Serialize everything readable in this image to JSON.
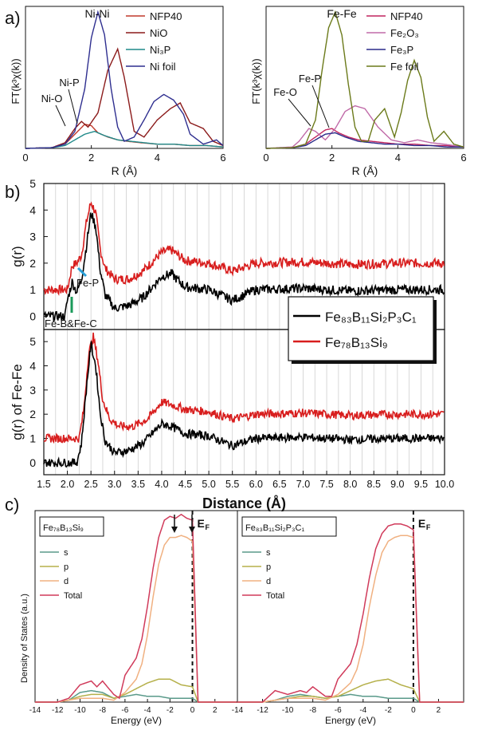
{
  "panel_labels": {
    "a": "a)",
    "b": "b)",
    "c": "c)"
  },
  "chart_data": [
    {
      "id": "a_left",
      "type": "line",
      "xlabel": "R (Å)",
      "ylabel": "FT(k³χ(k))",
      "xlim": [
        0,
        6
      ],
      "ylim": [
        0,
        1.0
      ],
      "xticks": [
        "0",
        "2",
        "4",
        "6"
      ],
      "grid": false,
      "legend_placement": "top-right",
      "annotations": [
        "Ni-Ni",
        "Ni-P",
        "Ni-O"
      ],
      "series": [
        {
          "name": "NFP40",
          "color": "#c0392b",
          "x": [
            0,
            0.8,
            1.2,
            1.5,
            1.8,
            2.0,
            2.2,
            2.5,
            2.8,
            3.1,
            3.5,
            4.0,
            4.5,
            5.0,
            5.5,
            6.0
          ],
          "y": [
            0,
            0.005,
            0.03,
            0.1,
            0.17,
            0.16,
            0.11,
            0.08,
            0.06,
            0.05,
            0.04,
            0.03,
            0.03,
            0.02,
            0.02,
            0.01
          ]
        },
        {
          "name": "NiO",
          "color": "#8b1a1a",
          "x": [
            0,
            0.8,
            1.2,
            1.5,
            1.7,
            1.9,
            2.2,
            2.5,
            2.8,
            3.0,
            3.3,
            3.6,
            4.0,
            4.4,
            4.7,
            5.0,
            5.4,
            5.7,
            6.0
          ],
          "y": [
            0,
            0.005,
            0.04,
            0.14,
            0.19,
            0.15,
            0.25,
            0.55,
            0.7,
            0.5,
            0.12,
            0.08,
            0.2,
            0.28,
            0.32,
            0.18,
            0.14,
            0.05,
            0.02
          ]
        },
        {
          "name": "Ni₃P",
          "color": "#1f8a8a",
          "x": [
            0,
            0.8,
            1.2,
            1.5,
            1.8,
            2.1,
            2.4,
            2.8,
            3.2,
            3.6,
            4.0,
            4.5,
            5.0,
            5.5,
            6.0
          ],
          "y": [
            0,
            0.005,
            0.02,
            0.06,
            0.1,
            0.12,
            0.09,
            0.06,
            0.05,
            0.04,
            0.03,
            0.03,
            0.02,
            0.02,
            0.01
          ]
        },
        {
          "name": "Ni foil",
          "color": "#2e2e8f",
          "x": [
            0,
            0.8,
            1.2,
            1.5,
            1.8,
            2.0,
            2.2,
            2.4,
            2.6,
            2.8,
            3.0,
            3.3,
            3.6,
            3.9,
            4.2,
            4.5,
            4.8,
            5.0,
            5.4,
            5.8,
            6.0
          ],
          "y": [
            0,
            0.005,
            0.03,
            0.12,
            0.42,
            0.78,
            0.96,
            0.8,
            0.42,
            0.15,
            0.05,
            0.08,
            0.2,
            0.33,
            0.38,
            0.34,
            0.24,
            0.1,
            0.03,
            0.06,
            0.02
          ]
        }
      ]
    },
    {
      "id": "a_right",
      "type": "line",
      "xlabel": "R (Å)",
      "ylabel": "FT(k³χ(k))",
      "xlim": [
        0,
        6
      ],
      "ylim": [
        0,
        1.0
      ],
      "xticks": [
        "0",
        "2",
        "4",
        "6"
      ],
      "grid": false,
      "legend_placement": "top-right",
      "annotations": [
        "Fe-Fe",
        "Fe-P",
        "Fe-O"
      ],
      "series": [
        {
          "name": "NFP40",
          "color": "#c0245e",
          "x": [
            0,
            0.8,
            1.2,
            1.5,
            1.8,
            2.0,
            2.2,
            2.5,
            2.8,
            3.2,
            3.6,
            4.0,
            4.5,
            5.0,
            5.5,
            6.0
          ],
          "y": [
            0,
            0.005,
            0.03,
            0.08,
            0.13,
            0.14,
            0.11,
            0.08,
            0.06,
            0.05,
            0.04,
            0.03,
            0.03,
            0.02,
            0.02,
            0.01
          ]
        },
        {
          "name": "Fe₂O₃",
          "color": "#c06aa8",
          "x": [
            0,
            0.8,
            1.0,
            1.3,
            1.5,
            1.8,
            2.1,
            2.4,
            2.7,
            3.0,
            3.4,
            3.8,
            4.2,
            4.6,
            5.0,
            5.4,
            6.0
          ],
          "y": [
            0,
            0.01,
            0.05,
            0.14,
            0.12,
            0.06,
            0.14,
            0.26,
            0.3,
            0.28,
            0.15,
            0.06,
            0.04,
            0.06,
            0.04,
            0.03,
            0.01
          ]
        },
        {
          "name": "Fe₃P",
          "color": "#2a2a8a",
          "x": [
            0,
            0.8,
            1.2,
            1.5,
            1.8,
            2.1,
            2.4,
            2.8,
            3.2,
            3.6,
            4.0,
            4.5,
            5.0,
            5.5,
            6.0
          ],
          "y": [
            0,
            0.005,
            0.02,
            0.06,
            0.1,
            0.11,
            0.08,
            0.05,
            0.04,
            0.03,
            0.03,
            0.02,
            0.02,
            0.01,
            0.01
          ]
        },
        {
          "name": "Fe foil",
          "color": "#6b7a1a",
          "x": [
            0,
            0.8,
            1.2,
            1.5,
            1.7,
            1.9,
            2.1,
            2.3,
            2.5,
            2.7,
            2.9,
            3.1,
            3.3,
            3.6,
            3.9,
            4.1,
            4.3,
            4.5,
            4.7,
            4.9,
            5.1,
            5.4,
            5.7,
            6.0
          ],
          "y": [
            0,
            0.005,
            0.03,
            0.2,
            0.55,
            0.85,
            0.96,
            0.8,
            0.45,
            0.15,
            0.05,
            0.05,
            0.2,
            0.28,
            0.08,
            0.25,
            0.48,
            0.62,
            0.5,
            0.22,
            0.05,
            0.12,
            0.03,
            0.01
          ]
        }
      ]
    },
    {
      "id": "b_top",
      "type": "line",
      "xlabel": "",
      "ylabel": "g(r)",
      "xlim": [
        1.5,
        10.0
      ],
      "ylim": [
        -0.5,
        5
      ],
      "yticks": [
        "0",
        "1",
        "2",
        "3",
        "4",
        "5"
      ],
      "grid": "vertical",
      "legend_placement": "bottom-right",
      "annotations": [
        "Fe-P",
        "Fe-B&Fe-C"
      ],
      "series": [
        {
          "name": "Fe₈₃B₁₁Si₂P₃C₁",
          "color": "#000000",
          "x": [
            1.5,
            1.95,
            2.0,
            2.1,
            2.2,
            2.3,
            2.4,
            2.5,
            2.6,
            2.7,
            2.8,
            3.0,
            3.3,
            3.6,
            4.0,
            4.2,
            4.5,
            5.0,
            5.5,
            6.0,
            7.0,
            8.0,
            9.0,
            10.0
          ],
          "y": [
            0,
            0,
            0.6,
            1.3,
            0.9,
            1.4,
            2.6,
            3.9,
            3.4,
            1.7,
            0.8,
            0.3,
            0.4,
            0.7,
            1.5,
            1.6,
            1.1,
            1.0,
            0.6,
            1.0,
            1.05,
            0.95,
            1.0,
            1.0
          ]
        },
        {
          "name": "Fe₇₈B₁₃Si₉",
          "color": "#d81e1e",
          "x": [
            1.5,
            2.0,
            2.1,
            2.2,
            2.3,
            2.4,
            2.5,
            2.6,
            2.7,
            2.8,
            3.0,
            3.3,
            3.6,
            4.0,
            4.2,
            4.5,
            5.0,
            5.5,
            6.0,
            7.0,
            8.0,
            9.0,
            10.0
          ],
          "y": [
            1.0,
            1.0,
            1.9,
            2.0,
            2.3,
            3.5,
            4.3,
            3.9,
            2.5,
            1.8,
            1.4,
            1.4,
            1.7,
            2.4,
            2.5,
            2.1,
            2.0,
            1.7,
            2.0,
            2.05,
            1.95,
            2.0,
            2.0
          ]
        }
      ]
    },
    {
      "id": "b_bottom",
      "type": "line",
      "xlabel": "Distance (Å)",
      "ylabel": "g(r) of Fe-Fe",
      "xlim": [
        1.5,
        10.0
      ],
      "ylim": [
        -0.5,
        5.5
      ],
      "yticks": [
        "0",
        "1",
        "2",
        "3",
        "4",
        "5"
      ],
      "xticks": [
        "1.5",
        "2.0",
        "2.5",
        "3.0",
        "3.5",
        "4.0",
        "4.5",
        "5.0",
        "5.5",
        "6.0",
        "6.5",
        "7.0",
        "7.5",
        "8.0",
        "8.5",
        "9.0",
        "9.5",
        "10.0"
      ],
      "grid": "vertical",
      "series": [
        {
          "name": "Fe₈₃B₁₁Si₂P₃C₁",
          "color": "#000000",
          "x": [
            1.5,
            2.2,
            2.3,
            2.4,
            2.5,
            2.6,
            2.7,
            2.8,
            3.0,
            3.3,
            3.6,
            4.0,
            4.2,
            4.5,
            5.0,
            5.5,
            6.0,
            7.0,
            8.0,
            9.0,
            10.0
          ],
          "y": [
            0,
            0,
            0.8,
            3.0,
            4.9,
            4.0,
            2.0,
            0.9,
            0.4,
            0.5,
            0.8,
            1.6,
            1.5,
            1.2,
            1.1,
            0.7,
            1.0,
            1.05,
            0.95,
            1.0,
            1.0
          ]
        },
        {
          "name": "Fe₇₈B₁₃Si₉",
          "color": "#d81e1e",
          "x": [
            1.5,
            2.25,
            2.35,
            2.45,
            2.55,
            2.65,
            2.75,
            2.9,
            3.1,
            3.4,
            3.7,
            4.0,
            4.2,
            4.5,
            5.0,
            5.5,
            6.0,
            7.0,
            8.0,
            9.0,
            10.0
          ],
          "y": [
            1.0,
            1.0,
            2.2,
            4.5,
            5.2,
            4.2,
            2.6,
            1.8,
            1.5,
            1.5,
            1.8,
            2.5,
            2.4,
            2.2,
            2.1,
            1.8,
            2.0,
            2.05,
            1.95,
            2.0,
            2.0
          ]
        }
      ]
    },
    {
      "id": "c_left",
      "type": "area",
      "xlabel": "Energy (eV)",
      "ylabel": "Density of States (a.u.)",
      "xlim": [
        -14,
        4
      ],
      "ylim": [
        0,
        1.0
      ],
      "xticks": [
        "-14",
        "-12",
        "-10",
        "-8",
        "-6",
        "-4",
        "-2",
        "0",
        "2"
      ],
      "title": "Fe₇₈B₁₃Si₉",
      "annotations": [
        "E_F"
      ],
      "legend_placement": "top-left",
      "series": [
        {
          "name": "s",
          "color": "#5a9a8a",
          "x": [
            -14,
            -12,
            -11,
            -10,
            -9,
            -8,
            -7,
            -6,
            -5,
            -4,
            -3,
            -2,
            -1,
            0,
            0.5,
            4
          ],
          "y": [
            0,
            0,
            0.01,
            0.05,
            0.06,
            0.05,
            0.02,
            0.03,
            0.04,
            0.03,
            0.03,
            0.02,
            0.02,
            0.02,
            0.0,
            0
          ]
        },
        {
          "name": "p",
          "color": "#b5b04a",
          "x": [
            -14,
            -12,
            -11,
            -10,
            -9,
            -8,
            -7,
            -6,
            -5,
            -4,
            -3,
            -2,
            -1,
            0,
            0.5,
            4
          ],
          "y": [
            0,
            0,
            0.01,
            0.03,
            0.04,
            0.04,
            0.02,
            0.04,
            0.07,
            0.1,
            0.12,
            0.12,
            0.09,
            0.08,
            0.0,
            0
          ]
        },
        {
          "name": "d",
          "color": "#f0b080",
          "x": [
            -14,
            -12,
            -11,
            -10,
            -9,
            -8,
            -7,
            -6,
            -5,
            -4.5,
            -4,
            -3.5,
            -3,
            -2.5,
            -2,
            -1.5,
            -1,
            -0.5,
            0,
            0.5,
            4
          ],
          "y": [
            0,
            0,
            0.01,
            0.02,
            0.02,
            0.02,
            0.01,
            0.05,
            0.12,
            0.2,
            0.35,
            0.55,
            0.72,
            0.82,
            0.86,
            0.86,
            0.87,
            0.86,
            0.84,
            0.0,
            0
          ]
        },
        {
          "name": "Total",
          "color": "#d03a5a",
          "x": [
            -14,
            -12,
            -11,
            -10,
            -9,
            -8.5,
            -8,
            -7,
            -6.5,
            -6,
            -5,
            -4.5,
            -4,
            -3.5,
            -3,
            -2.5,
            -2,
            -1.5,
            -1,
            -0.5,
            0,
            0.5,
            4
          ],
          "y": [
            0,
            0,
            0.02,
            0.09,
            0.11,
            0.08,
            0.11,
            0.04,
            0.02,
            0.14,
            0.23,
            0.33,
            0.5,
            0.7,
            0.86,
            0.95,
            0.97,
            0.96,
            0.98,
            0.96,
            0.95,
            0.0,
            0
          ]
        }
      ]
    },
    {
      "id": "c_right",
      "type": "area",
      "xlabel": "Energy (eV)",
      "ylabel": "",
      "xlim": [
        -14,
        4
      ],
      "ylim": [
        0,
        1.0
      ],
      "xticks": [
        "-14",
        "-12",
        "-10",
        "-8",
        "-6",
        "-4",
        "-2",
        "0",
        "2"
      ],
      "title": "Fe₈₃B₁₁Si₂P₃C₁",
      "annotations": [
        "E_F"
      ],
      "legend_placement": "top-left",
      "series": [
        {
          "name": "s",
          "color": "#5a9a8a",
          "x": [
            -14,
            -12,
            -11,
            -10,
            -9,
            -8,
            -7,
            -6,
            -5,
            -4,
            -3,
            -2,
            -1,
            0,
            0.5,
            4
          ],
          "y": [
            0,
            0,
            0.01,
            0.03,
            0.04,
            0.03,
            0.02,
            0.03,
            0.04,
            0.03,
            0.03,
            0.02,
            0.02,
            0.02,
            0.0,
            0
          ]
        },
        {
          "name": "p",
          "color": "#b5b04a",
          "x": [
            -14,
            -12,
            -11,
            -10,
            -9,
            -8,
            -7,
            -6,
            -5,
            -4,
            -3,
            -2,
            -1,
            0,
            0.5,
            4
          ],
          "y": [
            0,
            0,
            0.01,
            0.02,
            0.03,
            0.03,
            0.02,
            0.03,
            0.06,
            0.09,
            0.11,
            0.12,
            0.09,
            0.07,
            0.0,
            0
          ]
        },
        {
          "name": "d",
          "color": "#f0b080",
          "x": [
            -14,
            -12,
            -11,
            -10,
            -9,
            -8,
            -7,
            -6,
            -5,
            -4.5,
            -4,
            -3.5,
            -3,
            -2.5,
            -2,
            -1.5,
            -1,
            -0.5,
            0,
            0.5,
            4
          ],
          "y": [
            0,
            0,
            0.01,
            0.02,
            0.02,
            0.02,
            0.01,
            0.04,
            0.1,
            0.17,
            0.3,
            0.5,
            0.66,
            0.78,
            0.84,
            0.86,
            0.87,
            0.87,
            0.86,
            0.0,
            0
          ]
        },
        {
          "name": "Total",
          "color": "#d03a5a",
          "x": [
            -14,
            -12,
            -11.5,
            -11,
            -10,
            -9,
            -8.5,
            -8,
            -7,
            -6.5,
            -6,
            -5,
            -4.5,
            -4,
            -3.5,
            -3,
            -2.5,
            -2,
            -1.5,
            -1,
            -0.5,
            0,
            0.5,
            4
          ],
          "y": [
            0,
            0,
            0.03,
            0.06,
            0.04,
            0.06,
            0.05,
            0.08,
            0.03,
            0.03,
            0.12,
            0.2,
            0.3,
            0.46,
            0.65,
            0.8,
            0.88,
            0.92,
            0.93,
            0.93,
            0.92,
            0.9,
            0.0,
            0
          ]
        }
      ]
    }
  ]
}
